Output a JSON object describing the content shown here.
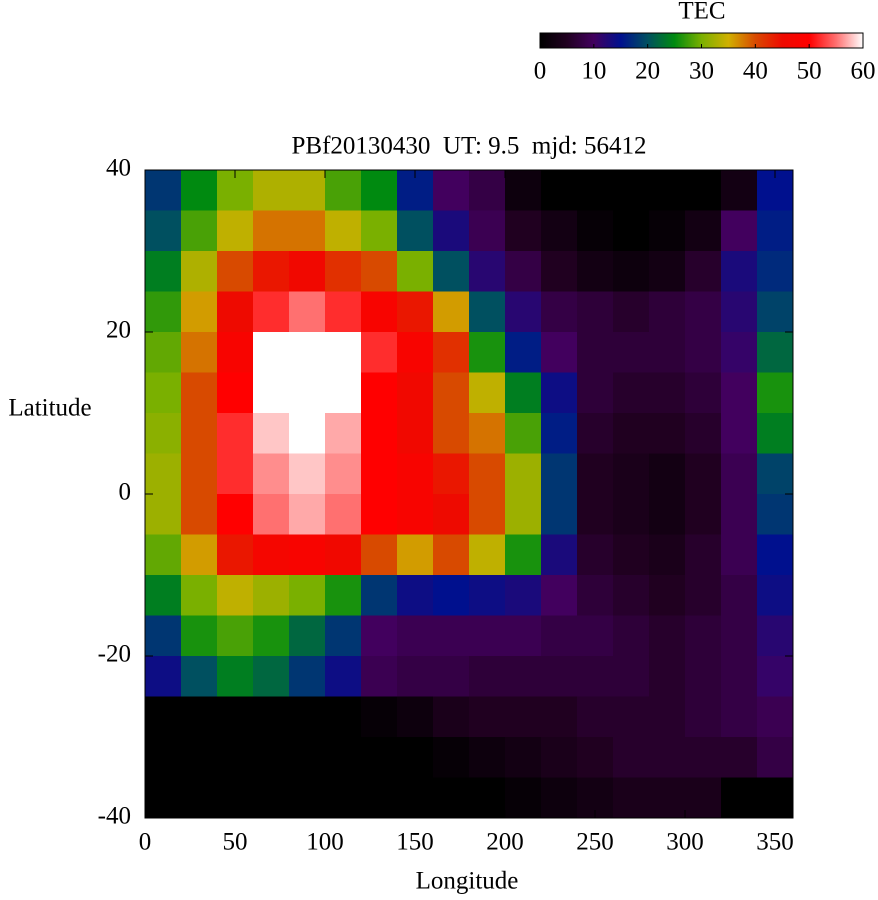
{
  "chart_data": {
    "type": "heatmap",
    "title": "PBf20130430  UT: 9.5  mjd: 56412",
    "x_label": "Longitude",
    "y_label": "Latitude",
    "colorbar_label": "TEC",
    "xlim": [
      0,
      360
    ],
    "ylim": [
      -40,
      40
    ],
    "xticks": [
      0,
      50,
      100,
      150,
      200,
      250,
      300,
      350
    ],
    "yticks": [
      -40,
      -20,
      0,
      20,
      40
    ],
    "colorbar_lim": [
      0,
      60
    ],
    "colorbar_ticks": [
      0,
      10,
      20,
      30,
      40,
      50,
      60
    ],
    "colormap": [
      {
        "value": 0,
        "color": "#000000"
      },
      {
        "value": 5,
        "color": "#200020"
      },
      {
        "value": 10,
        "color": "#42005e"
      },
      {
        "value": 15,
        "color": "#00108e"
      },
      {
        "value": 20,
        "color": "#005060"
      },
      {
        "value": 25,
        "color": "#008a10"
      },
      {
        "value": 30,
        "color": "#7ab000"
      },
      {
        "value": 35,
        "color": "#d0b000"
      },
      {
        "value": 40,
        "color": "#d84a00"
      },
      {
        "value": 45,
        "color": "#ee0a00"
      },
      {
        "value": 50,
        "color": "#ff0000"
      },
      {
        "value": 55,
        "color": "#ff7070"
      },
      {
        "value": 60,
        "color": "#ffffff"
      }
    ],
    "xbins": [
      0,
      20,
      40,
      60,
      80,
      100,
      120,
      140,
      160,
      180,
      200,
      220,
      240,
      260,
      280,
      300,
      320,
      340,
      360
    ],
    "ybins": [
      40,
      35,
      30,
      25,
      20,
      15,
      10,
      5,
      0,
      -5,
      -10,
      -15,
      -20,
      -25,
      -30,
      -35,
      -40
    ],
    "z": [
      [
        18,
        25,
        30,
        33,
        33,
        28,
        25,
        16,
        10,
        8,
        2,
        0,
        0,
        0,
        0,
        0,
        3,
        15
      ],
      [
        20,
        28,
        34,
        38,
        38,
        34,
        30,
        20,
        13,
        9,
        5,
        3,
        1,
        0,
        1,
        3,
        10,
        16
      ],
      [
        24,
        33,
        40,
        44,
        46,
        42,
        40,
        30,
        20,
        12,
        8,
        5,
        3,
        2,
        3,
        6,
        13,
        17
      ],
      [
        27,
        36,
        45,
        52,
        55,
        52,
        48,
        44,
        36,
        20,
        12,
        8,
        7,
        6,
        7,
        8,
        12,
        19
      ],
      [
        29,
        38,
        48,
        60,
        60,
        60,
        52,
        48,
        42,
        26,
        16,
        10,
        7,
        7,
        7,
        8,
        11,
        22
      ],
      [
        30,
        40,
        50,
        60,
        60,
        60,
        50,
        46,
        40,
        34,
        24,
        14,
        7,
        6,
        6,
        7,
        10,
        26
      ],
      [
        31,
        40,
        52,
        58,
        60,
        57,
        50,
        46,
        40,
        38,
        28,
        16,
        6,
        5,
        5,
        6,
        10,
        24
      ],
      [
        32,
        40,
        52,
        56,
        58,
        56,
        50,
        48,
        44,
        40,
        32,
        18,
        5,
        4,
        3,
        5,
        9,
        19
      ],
      [
        32,
        40,
        50,
        55,
        57,
        55,
        50,
        48,
        45,
        40,
        32,
        18,
        5,
        4,
        3,
        5,
        9,
        18
      ],
      [
        29,
        36,
        44,
        47,
        48,
        46,
        40,
        36,
        40,
        34,
        26,
        13,
        6,
        5,
        4,
        6,
        9,
        15
      ],
      [
        24,
        30,
        34,
        32,
        30,
        26,
        18,
        14,
        15,
        14,
        13,
        10,
        7,
        6,
        5,
        6,
        8,
        14
      ],
      [
        18,
        26,
        28,
        26,
        22,
        18,
        10,
        9,
        9,
        9,
        9,
        8,
        8,
        7,
        6,
        7,
        8,
        12
      ],
      [
        14,
        20,
        24,
        22,
        18,
        14,
        9,
        8,
        8,
        7,
        7,
        7,
        7,
        7,
        6,
        7,
        8,
        11
      ],
      [
        0,
        0,
        0,
        0,
        0,
        0,
        1,
        2,
        4,
        5,
        5,
        5,
        6,
        6,
        6,
        7,
        8,
        9
      ],
      [
        0,
        0,
        0,
        0,
        0,
        0,
        0,
        0,
        1,
        2,
        3,
        4,
        5,
        6,
        6,
        6,
        6,
        8
      ],
      [
        0,
        0,
        0,
        0,
        0,
        0,
        0,
        0,
        0,
        0,
        1,
        2,
        3,
        4,
        4,
        4,
        0,
        0
      ]
    ]
  }
}
